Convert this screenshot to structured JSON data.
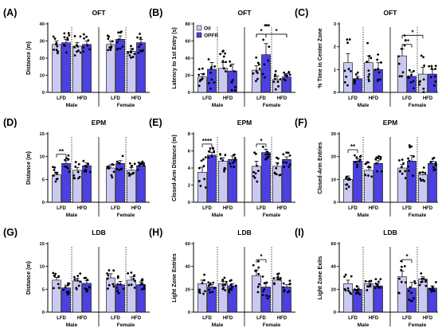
{
  "colors": {
    "oil": "#c9c9f2",
    "opfr": "#4b40e0"
  },
  "legend": {
    "oil": "Oil",
    "opfr": "OPFR"
  },
  "groups": {
    "diets": [
      "LFD",
      "HFD",
      "LFD",
      "HFD"
    ],
    "sexes": [
      "Male",
      "Female"
    ]
  },
  "chart_data": [
    {
      "letter": "(A)",
      "title": "OFT",
      "ylabel": "Distance (m)",
      "ylim": [
        0,
        40
      ],
      "yticks": [
        0,
        10,
        20,
        30,
        40
      ],
      "type": "bar",
      "legend": false,
      "series": [
        {
          "name": "Oil",
          "values": [
            28,
            27,
            28,
            24
          ]
        },
        {
          "name": "OPFR",
          "values": [
            29,
            28,
            31,
            29
          ]
        }
      ],
      "errors": [
        [
          2,
          2
        ],
        [
          2,
          2
        ],
        [
          2,
          2
        ],
        [
          1.5,
          2
        ]
      ],
      "sig": []
    },
    {
      "letter": "(B)",
      "title": "OFT",
      "ylabel": "Latency to 1st Entry (s)",
      "ylim": [
        0,
        80
      ],
      "yticks": [
        0,
        20,
        40,
        60,
        80
      ],
      "type": "bar",
      "legend": true,
      "series": [
        {
          "name": "Oil",
          "values": [
            18,
            28,
            26,
            15
          ]
        },
        {
          "name": "OPFR",
          "values": [
            27,
            25,
            44,
            18
          ]
        }
      ],
      "errors": [
        [
          4,
          8
        ],
        [
          7,
          8
        ],
        [
          5,
          13
        ],
        [
          4,
          4
        ]
      ],
      "sig": [
        {
          "from": [
            2,
            0
          ],
          "to": [
            2,
            1
          ],
          "label": "*",
          "level": 68
        },
        {
          "from": [
            2,
            1
          ],
          "to": [
            3,
            1
          ],
          "label": "*",
          "level": 68
        },
        {
          "from": [
            2,
            0
          ],
          "to": [
            3,
            1
          ],
          "label": "",
          "level": 68
        }
      ]
    },
    {
      "letter": "(C)",
      "title": "OFT",
      "ylabel": "% Time in Center Zone",
      "ylim": [
        0,
        3
      ],
      "yticks": [
        0,
        1,
        2,
        3
      ],
      "type": "bar",
      "legend": false,
      "series": [
        {
          "name": "Oil",
          "values": [
            1.3,
            1.3,
            1.6,
            0.8
          ]
        },
        {
          "name": "OPFR",
          "values": [
            0.6,
            1.0,
            0.7,
            0.8
          ]
        }
      ],
      "errors": [
        [
          0.4,
          0.1
        ],
        [
          0.3,
          0.3
        ],
        [
          0.3,
          0.2
        ],
        [
          0.3,
          0.2
        ]
      ],
      "sig": [
        {
          "from": [
            2,
            0
          ],
          "to": [
            2,
            1
          ],
          "label": "**",
          "level": 2.1
        },
        {
          "from": [
            2,
            0
          ],
          "to": [
            3,
            0
          ],
          "label": "*",
          "level": 2.5
        }
      ]
    },
    {
      "letter": "(D)",
      "title": "EPM",
      "ylabel": "Distance (m)",
      "ylim": [
        0,
        15
      ],
      "yticks": [
        0,
        5,
        10,
        15
      ],
      "type": "bar",
      "legend": false,
      "series": [
        {
          "name": "Oil",
          "values": [
            6,
            7,
            7.5,
            7
          ]
        },
        {
          "name": "OPFR",
          "values": [
            8.5,
            8,
            8.5,
            8
          ]
        }
      ],
      "errors": [
        [
          0.6,
          0.6
        ],
        [
          0.6,
          0.6
        ],
        [
          0.7,
          0.6
        ],
        [
          0.6,
          0.4
        ]
      ],
      "sig": [
        {
          "from": [
            0,
            0
          ],
          "to": [
            0,
            1
          ],
          "label": "**",
          "level": 10.5
        }
      ]
    },
    {
      "letter": "(E)",
      "title": "EPM",
      "ylabel": "Closed-Arm Distance (m)",
      "ylim": [
        0,
        8
      ],
      "yticks": [
        0,
        2,
        4,
        6,
        8
      ],
      "type": "bar",
      "legend": false,
      "series": [
        {
          "name": "Oil",
          "values": [
            3.5,
            4.8,
            4.2,
            4.2
          ]
        },
        {
          "name": "OPFR",
          "values": [
            5.5,
            5,
            5.8,
            5
          ]
        }
      ],
      "errors": [
        [
          0.6,
          0.3
        ],
        [
          0.4,
          0.4
        ],
        [
          0.6,
          0.4
        ],
        [
          0.4,
          0.3
        ]
      ],
      "sig": [
        {
          "from": [
            0,
            0
          ],
          "to": [
            0,
            1
          ],
          "label": "****",
          "level": 6.8
        },
        {
          "from": [
            2,
            0
          ],
          "to": [
            2,
            1
          ],
          "label": "*",
          "level": 6.8
        }
      ]
    },
    {
      "letter": "(F)",
      "title": "EPM",
      "ylabel": "Closed-Arm Entries",
      "ylim": [
        0,
        30
      ],
      "yticks": [
        0,
        10,
        20,
        30
      ],
      "type": "bar",
      "legend": false,
      "series": [
        {
          "name": "Oil",
          "values": [
            10,
            14,
            15,
            12
          ]
        },
        {
          "name": "OPFR",
          "values": [
            18,
            17,
            18,
            17
          ]
        }
      ],
      "errors": [
        [
          1.5,
          1
        ],
        [
          1.2,
          1.2
        ],
        [
          1.5,
          2.5
        ],
        [
          1.2,
          1
        ]
      ],
      "sig": [
        {
          "from": [
            0,
            0
          ],
          "to": [
            0,
            1
          ],
          "label": "**",
          "level": 23
        }
      ]
    },
    {
      "letter": "(G)",
      "title": "LDB",
      "ylabel": "Distance (m)",
      "ylim": [
        0,
        15
      ],
      "yticks": [
        0,
        5,
        10,
        15
      ],
      "type": "bar",
      "legend": false,
      "series": [
        {
          "name": "Oil",
          "values": [
            7,
            6.8,
            7.5,
            7
          ]
        },
        {
          "name": "OPFR",
          "values": [
            5.3,
            6.3,
            6,
            6
          ]
        }
      ],
      "errors": [
        [
          0.6,
          0.6
        ],
        [
          0.6,
          0.6
        ],
        [
          0.9,
          0.7
        ],
        [
          0.7,
          0.6
        ]
      ],
      "sig": []
    },
    {
      "letter": "(H)",
      "title": "LDB",
      "ylabel": "Light Zone Entries",
      "ylim": [
        0,
        60
      ],
      "yticks": [
        0,
        20,
        40,
        60
      ],
      "type": "bar",
      "legend": false,
      "series": [
        {
          "name": "Oil",
          "values": [
            25,
            25,
            32,
            28
          ]
        },
        {
          "name": "OPFR",
          "values": [
            22,
            23,
            22,
            22
          ]
        }
      ],
      "errors": [
        [
          3,
          2
        ],
        [
          2,
          2
        ],
        [
          5,
          4
        ],
        [
          2,
          2
        ]
      ],
      "sig": [
        {
          "from": [
            2,
            0
          ],
          "to": [
            2,
            1
          ],
          "label": "*",
          "level": 46
        }
      ]
    },
    {
      "letter": "(I)",
      "title": "LDB",
      "ylabel": "Light Zone Exits",
      "ylim": [
        0,
        60
      ],
      "yticks": [
        0,
        20,
        40,
        60
      ],
      "type": "bar",
      "legend": false,
      "series": [
        {
          "name": "Oil",
          "values": [
            25,
            25,
            31,
            29
          ]
        },
        {
          "name": "OPFR",
          "values": [
            20,
            23,
            21,
            21
          ]
        }
      ],
      "errors": [
        [
          3,
          2
        ],
        [
          2,
          2
        ],
        [
          5,
          5
        ],
        [
          2,
          2
        ]
      ],
      "sig": [
        {
          "from": [
            2,
            0
          ],
          "to": [
            2,
            1
          ],
          "label": "*",
          "level": 46
        }
      ]
    }
  ]
}
